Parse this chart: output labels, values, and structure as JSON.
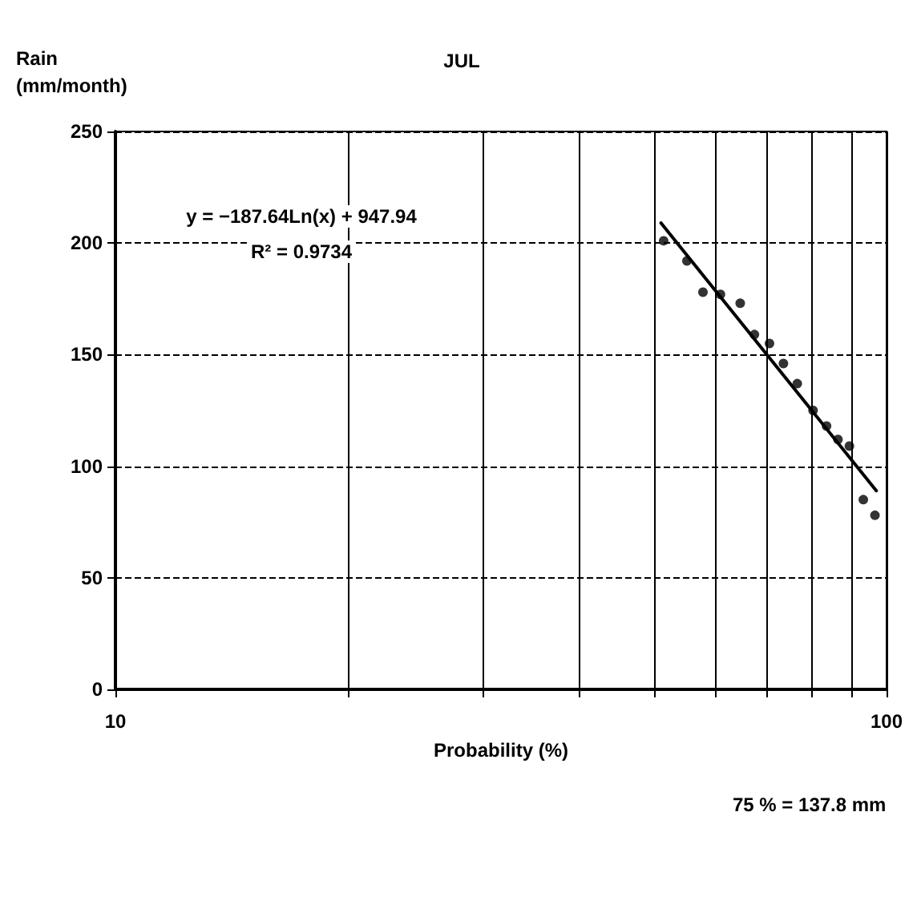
{
  "chart_data": {
    "type": "scatter",
    "title": "JUL",
    "xlabel": "Probability (%)",
    "ylabel": "Rain\n(mm/month)",
    "annotations": [
      "y = −187.64Ln(x) + 947.94",
      "R² = 0.9734",
      "75 % = 137.8 mm"
    ],
    "log": "x",
    "xlim": [
      10,
      100
    ],
    "xticks": [
      10,
      {
        "value": 20,
        "label": null
      },
      {
        "value": 30,
        "label": null
      },
      {
        "value": 40,
        "label": null
      },
      {
        "value": 50,
        "label": null
      },
      {
        "value": 60,
        "label": null
      },
      {
        "value": 70,
        "label": null
      },
      {
        "value": 80,
        "label": null
      },
      {
        "value": 90,
        "label": null
      },
      100
    ],
    "ylim": [
      0,
      250
    ],
    "yticks": [
      0,
      50,
      100,
      150,
      200,
      250
    ],
    "grid": true,
    "series": [
      {
        "color": "#000000",
        "marker": "circle",
        "x": [
          51.4,
          55.1,
          57.8,
          60.9,
          64.6,
          67.4,
          70.5,
          73.5,
          76.6,
          80.3,
          83.6,
          86.5,
          89.5,
          93.3,
          96.6
        ],
        "values": [
          201,
          192,
          178,
          177,
          173,
          159,
          155,
          146,
          137,
          125,
          118,
          112,
          109,
          85,
          78
        ]
      },
      {
        "type": "line",
        "color": "#000000",
        "marker": "none",
        "line_style": "solid",
        "x": [
          51,
          97
        ],
        "values": [
          209,
          89
        ]
      }
    ]
  }
}
